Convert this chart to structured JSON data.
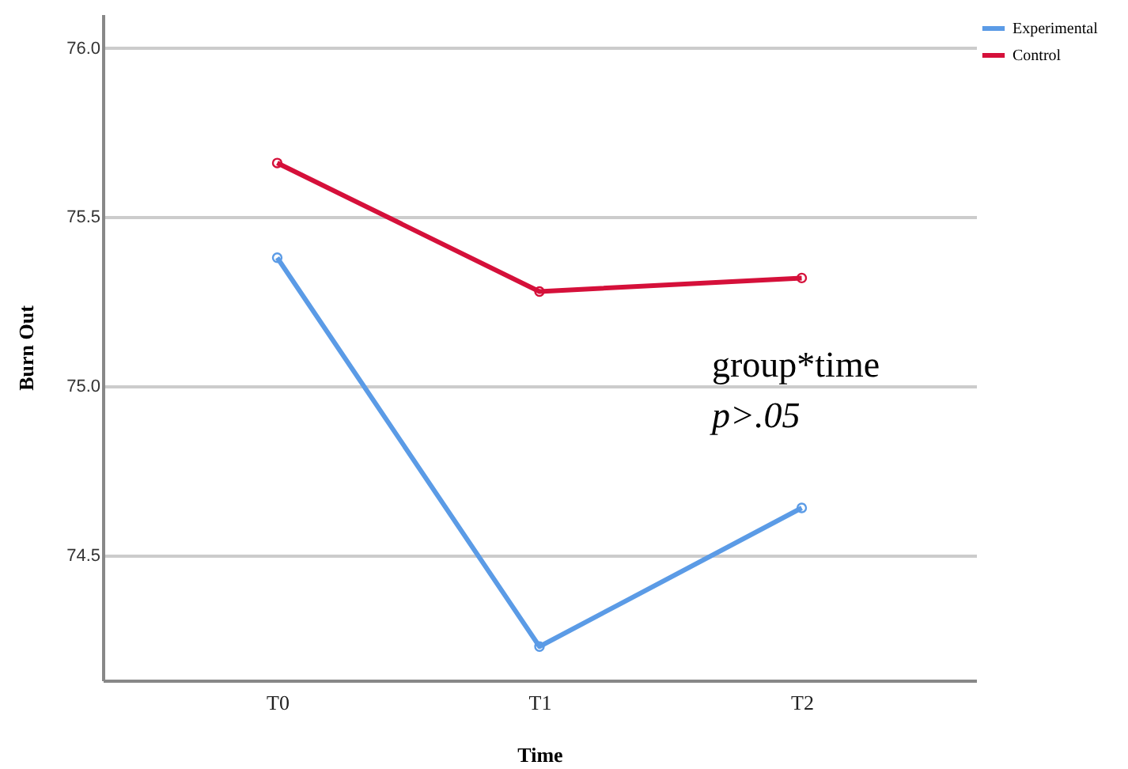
{
  "chart_data": {
    "type": "line",
    "xlabel": "Time",
    "ylabel": "Burn Out",
    "categories": [
      "T0",
      "T1",
      "T2"
    ],
    "series": [
      {
        "name": "Experimental",
        "color": "#5b9be6",
        "values": [
          75.38,
          74.23,
          74.64
        ]
      },
      {
        "name": "Control",
        "color": "#d5103a",
        "values": [
          75.66,
          75.28,
          75.32
        ]
      }
    ],
    "ylim": [
      74.13,
      76.1
    ],
    "yticks": [
      74.5,
      {
        "value": 75,
        "label": "75.0"
      },
      75.5,
      {
        "value": 76,
        "label": "76.0"
      }
    ],
    "grid": "y",
    "legend": "top right",
    "marker": "circle",
    "line_style": "solid",
    "annotations": [
      "group*time",
      "p>.05"
    ]
  }
}
